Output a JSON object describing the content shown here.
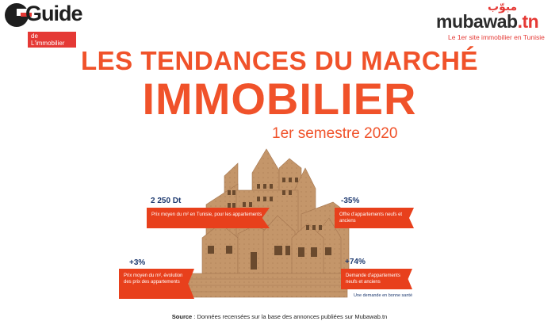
{
  "logo_left": {
    "name": "Guide",
    "sub": "de L'immobilier"
  },
  "logo_right": {
    "arabic": "مبوّب",
    "name": "mubawab",
    "tld": ".tn",
    "tagline": "Le 1er site immobilier en Tunisie"
  },
  "title": {
    "line1": "LES TENDANCES DU MARCHÉ",
    "line2": "IMMOBILIER",
    "line3": "1er semestre 2020"
  },
  "stats": [
    {
      "value": "2 250 Dt",
      "text": "Prix moyen du m² en Tunisie, pour les appartements"
    },
    {
      "value": "-35%",
      "text": "Offre d'appartements neufs et anciens"
    },
    {
      "value": "+3%",
      "text": "Prix moyen du m², évolution des prix des appartements"
    },
    {
      "value": "+74%",
      "text": "Demande d'appartements neufs et anciens"
    }
  ],
  "note": "Une demande en bonne santé",
  "source": {
    "label": "Source",
    "text": " : Données recensées sur la base des annonces  publiées sur Mubawab.tn"
  },
  "colors": {
    "accent": "#f0522a",
    "banner": "#e8401c",
    "cardboard": "#c4966a",
    "navy": "#1e3a70"
  }
}
